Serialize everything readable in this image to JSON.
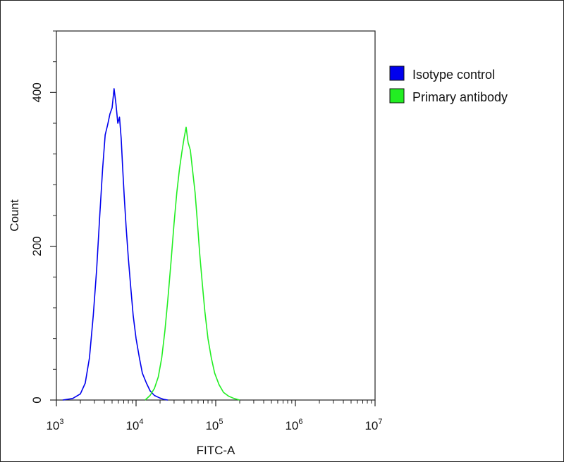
{
  "chart_data": {
    "type": "line",
    "xlabel": "FITC-A",
    "ylabel": "Count",
    "x_scale": "log",
    "xlim": [
      1000,
      10000000
    ],
    "ylim": [
      0,
      480
    ],
    "x_ticks": [
      {
        "value": 1000,
        "base": "10",
        "exp": "3"
      },
      {
        "value": 10000,
        "base": "10",
        "exp": "4"
      },
      {
        "value": 100000,
        "base": "10",
        "exp": "5"
      },
      {
        "value": 1000000,
        "base": "10",
        "exp": "6"
      },
      {
        "value": 10000000,
        "base": "10",
        "exp": "7"
      }
    ],
    "y_ticks": [
      {
        "value": 0,
        "label": "0"
      },
      {
        "value": 200,
        "label": "200"
      },
      {
        "value": 400,
        "label": "400"
      }
    ],
    "legend_position": "top-right",
    "series": [
      {
        "name": "Isotype control",
        "color": "#0000ee",
        "x": [
          1200,
          1600,
          2000,
          2300,
          2600,
          2900,
          3200,
          3500,
          3800,
          4100,
          4400,
          4700,
          5000,
          5300,
          5600,
          5900,
          6200,
          6500,
          6800,
          7100,
          7500,
          8000,
          8600,
          9200,
          10000,
          11000,
          12000,
          13500,
          15000,
          17000,
          19500,
          22000,
          25000
        ],
        "y": [
          0,
          2,
          8,
          22,
          55,
          110,
          170,
          240,
          300,
          345,
          358,
          372,
          380,
          405,
          385,
          360,
          368,
          340,
          300,
          265,
          225,
          185,
          145,
          110,
          80,
          55,
          35,
          22,
          12,
          6,
          3,
          1,
          0
        ]
      },
      {
        "name": "Primary antibody",
        "color": "#22ee22",
        "x": [
          13000,
          15000,
          17000,
          19000,
          21000,
          23000,
          25000,
          27500,
          30000,
          32500,
          35000,
          37500,
          40000,
          42500,
          45000,
          48000,
          51000,
          55000,
          59000,
          63000,
          68000,
          73000,
          80000,
          88000,
          97000,
          110000,
          125000,
          145000,
          170000,
          200000
        ],
        "y": [
          0,
          6,
          15,
          30,
          55,
          90,
          130,
          180,
          230,
          270,
          300,
          322,
          340,
          355,
          335,
          325,
          300,
          270,
          230,
          190,
          150,
          115,
          80,
          55,
          35,
          20,
          10,
          5,
          2,
          0
        ]
      }
    ]
  }
}
